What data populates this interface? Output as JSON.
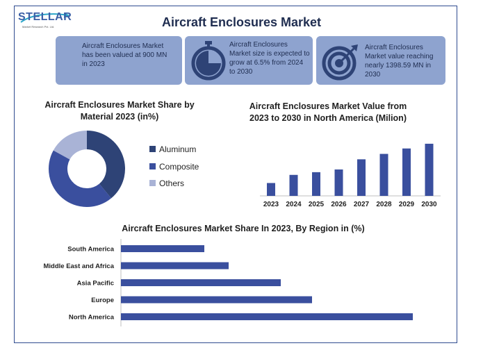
{
  "logo": {
    "word": "STELLAR",
    "subtitle": "Market Research Pvt. Ltd."
  },
  "title": "Aircraft Enclosures Market",
  "cards": [
    {
      "text": "Aircraft Enclosures Market has been valued at 900 MN in 2023",
      "icon": "none"
    },
    {
      "text": "Aircraft Enclosures Market size is expected to grow at 6.5% from 2024 to 2030",
      "icon": "stopwatch-icon"
    },
    {
      "text": "Aircraft Enclosures Market value reaching nearly 1398.59 MN in 2030",
      "icon": "target-icon"
    }
  ],
  "colors": {
    "accent": "#3a4f9e",
    "card": "#8ea3cf",
    "dark": "#2e4376",
    "light": "#a9b3d6"
  },
  "chart_data": [
    {
      "type": "pie",
      "title": "Aircraft Enclosures Market Share by Material 2023 (in%)",
      "categories": [
        "Aluminum",
        "Composite",
        "Others"
      ],
      "values": [
        39,
        44,
        17
      ],
      "colors": [
        "#2e4376",
        "#3a4f9e",
        "#a9b3d6"
      ],
      "legend": "right"
    },
    {
      "type": "bar",
      "title": "Aircraft Enclosures Market Value from 2023 to 2030 in North America (Milion)",
      "categories": [
        "2023",
        "2024",
        "2025",
        "2026",
        "2027",
        "2028",
        "2029",
        "2030"
      ],
      "values": [
        19,
        31,
        35,
        39,
        54,
        62,
        70,
        77
      ],
      "ylim": [
        0,
        80
      ],
      "grid": false
    },
    {
      "type": "bar",
      "orientation": "horizontal",
      "title": "Aircraft Enclosures Market Share In 2023, By Region in (%)",
      "categories": [
        "South America",
        "Middle East and Africa",
        "Asia Pacific",
        "Europe",
        "North America"
      ],
      "values": [
        12,
        15.5,
        23,
        27.5,
        42
      ],
      "xlim": [
        0,
        45
      ],
      "grid": false
    }
  ]
}
